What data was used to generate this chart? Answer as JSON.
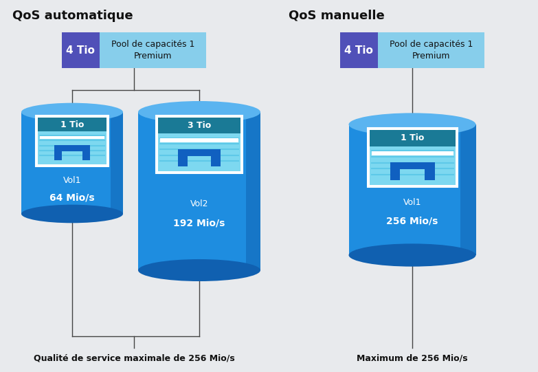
{
  "bg_color": "#e8eaed",
  "left_title": "QoS automatique",
  "right_title": "QoS manuelle",
  "left_bottom_text": "Qualité de service maximale de 256 Mio/s",
  "right_bottom_text": "Maximum de 256 Mio/s",
  "pool_bg_color": "#87ceeb",
  "pool_text_color_dark": "#111111",
  "pool_tio_text": "4 Tio",
  "pool_name_text": "Pool de capacités 1\nPremium",
  "vol1_tio_auto": "1 Tio",
  "vol2_tio_auto": "3 Tio",
  "vol1_name_auto": "Vol1",
  "vol2_name_auto": "Vol2",
  "vol1_speed_auto": "64 Mio/s",
  "vol2_speed_auto": "192 Mio/s",
  "vol1_tio_manual": "1 Tio",
  "vol1_name_manual": "Vol1",
  "vol1_speed_manual": "256 Mio/s",
  "cyl_color_main": "#1e8de0",
  "cyl_color_dark": "#1060b0",
  "cyl_color_top": "#5ab4f0",
  "icon_header_color": "#1a7a96",
  "icon_body_color": "#7dd8f0",
  "icon_stripe_color": "#5bc8e8",
  "icon_arch_color": "#1060c0",
  "line_color": "#444444",
  "white": "#ffffff",
  "purple_box_color": "#5050b8",
  "title_fontsize": 13,
  "label_fontsize": 10
}
